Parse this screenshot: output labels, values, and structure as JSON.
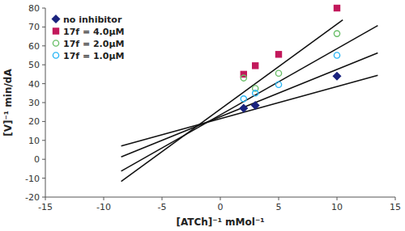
{
  "chart_data": {
    "type": "scatter",
    "xlabel": "[ATCh]⁻¹ mMol⁻¹",
    "ylabel": "[V]⁻¹ min/dA",
    "xlim": [
      -15,
      15
    ],
    "ylim": [
      -20,
      80
    ],
    "xticks": [
      -15,
      -10,
      -5,
      0,
      5,
      10,
      15
    ],
    "yticks": [
      -20,
      -10,
      0,
      10,
      20,
      30,
      40,
      50,
      60,
      70,
      80
    ],
    "grid": false,
    "legend": "upper left",
    "series": [
      {
        "type": "line",
        "color": "#111111",
        "x": [
          -8.5,
          13.5
        ],
        "values": [
          7.05,
          44.45
        ]
      },
      {
        "type": "scatter",
        "name": "no inhibitor",
        "color": "#1a237e",
        "marker": "diamond",
        "x": [
          2.0,
          3.0,
          10.0
        ],
        "values": [
          27.0,
          28.5,
          44.0
        ]
      },
      {
        "type": "line",
        "color": "#111111",
        "x": [
          -8.5,
          10.5
        ],
        "values": [
          -11.75,
          73.75
        ]
      },
      {
        "type": "scatter",
        "name": "17f = 4.0μM",
        "color": "#c2185b",
        "marker": "square",
        "x": [
          2.0,
          3.0,
          5.0,
          10.0
        ],
        "values": [
          45.0,
          49.5,
          55.5,
          80.0
        ]
      },
      {
        "type": "line",
        "color": "#111111",
        "x": [
          -8.5,
          13.5
        ],
        "values": [
          -6.25,
          70.75
        ]
      },
      {
        "type": "scatter",
        "name": "17f = 2.0μM",
        "color": "#6abf69",
        "marker": "open-circle",
        "x": [
          2.0,
          3.0,
          5.0,
          10.0
        ],
        "values": [
          43.0,
          37.5,
          45.5,
          66.5
        ]
      },
      {
        "type": "line",
        "color": "#111111",
        "x": [
          -8.5,
          13.5
        ],
        "values": [
          1.25,
          56.25
        ]
      },
      {
        "type": "scatter",
        "name": "17f = 1.0μM",
        "color": "#29b6f6",
        "marker": "open-circle",
        "x": [
          2.0,
          3.0,
          5.0,
          10.0
        ],
        "values": [
          32.0,
          35.0,
          39.5,
          55.0
        ]
      }
    ]
  }
}
